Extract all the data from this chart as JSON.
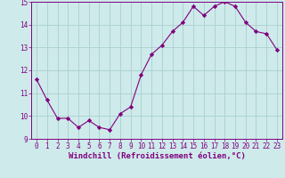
{
  "x": [
    0,
    1,
    2,
    3,
    4,
    5,
    6,
    7,
    8,
    9,
    10,
    11,
    12,
    13,
    14,
    15,
    16,
    17,
    18,
    19,
    20,
    21,
    22,
    23
  ],
  "y": [
    11.6,
    10.7,
    9.9,
    9.9,
    9.5,
    9.8,
    9.5,
    9.4,
    10.1,
    10.4,
    11.8,
    12.7,
    13.1,
    13.7,
    14.1,
    14.8,
    14.4,
    14.8,
    15.0,
    14.8,
    14.1,
    13.7,
    13.6,
    12.9
  ],
  "line_color": "#800080",
  "marker": "D",
  "marker_size": 2.2,
  "bg_color": "#ceeaea",
  "grid_color": "#aacfcf",
  "xlabel": "Windchill (Refroidissement éolien,°C)",
  "ylabel": "",
  "ylim": [
    9,
    15
  ],
  "xlim": [
    -0.5,
    23.5
  ],
  "yticks": [
    9,
    10,
    11,
    12,
    13,
    14,
    15
  ],
  "xticks": [
    0,
    1,
    2,
    3,
    4,
    5,
    6,
    7,
    8,
    9,
    10,
    11,
    12,
    13,
    14,
    15,
    16,
    17,
    18,
    19,
    20,
    21,
    22,
    23
  ],
  "tick_color": "#800080",
  "label_color": "#800080",
  "font_size": 5.5,
  "xlabel_fontsize": 6.5
}
